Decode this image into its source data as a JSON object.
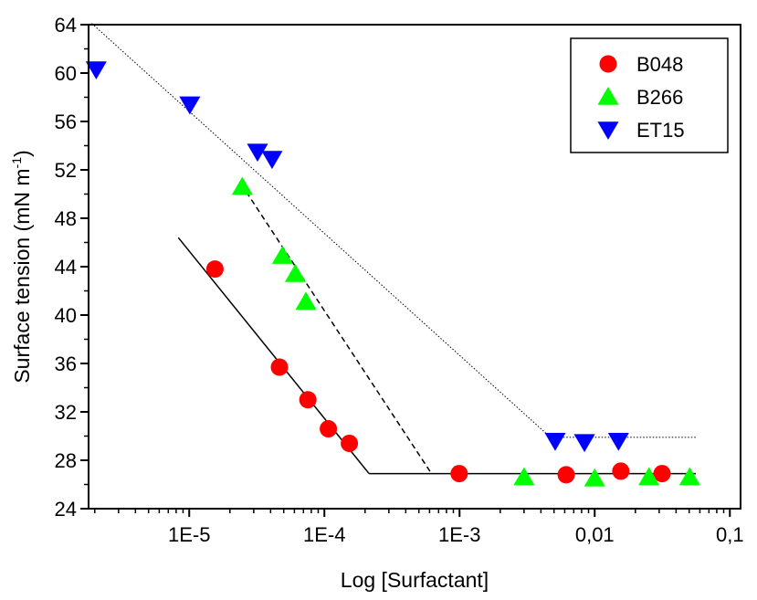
{
  "chart_data": {
    "type": "scatter",
    "title": "",
    "xlabel": "Log [Surfactant]",
    "ylabel_main": "Surface tension (mN m",
    "ylabel_sup": "-1",
    "ylabel_close": ")",
    "xscale": "log",
    "xlim": [
      1.8e-06,
      0.12
    ],
    "ylim": [
      24,
      64
    ],
    "xticks": [
      {
        "value": 1e-05,
        "label": "1E-5"
      },
      {
        "value": 0.0001,
        "label": "1E-4"
      },
      {
        "value": 0.001,
        "label": "1E-3"
      },
      {
        "value": 0.01,
        "label": "0,01"
      },
      {
        "value": 0.1,
        "label": "0,1"
      }
    ],
    "yticks": [
      24,
      28,
      32,
      36,
      40,
      44,
      48,
      52,
      56,
      60,
      64
    ],
    "legend_position": "top-right",
    "series": [
      {
        "name": "B048",
        "marker": "circle",
        "color": "#ff0000",
        "points": [
          [
            1.55e-05,
            43.8
          ],
          [
            4.65e-05,
            35.7
          ],
          [
            7.55e-05,
            33.0
          ],
          [
            0.000107,
            30.6
          ],
          [
            0.000153,
            29.4
          ],
          [
            0.000994,
            26.9
          ],
          [
            0.00615,
            26.8
          ],
          [
            0.0156,
            27.1
          ],
          [
            0.0315,
            26.9
          ]
        ],
        "fit_style": "solid",
        "fit_lines": [
          [
            [
              8.3e-06,
              46.4
            ],
            [
              0.000214,
              26.9
            ]
          ],
          [
            [
              0.000214,
              26.9
            ],
            [
              0.056,
              26.9
            ]
          ]
        ]
      },
      {
        "name": "B266",
        "marker": "triangle-up",
        "color": "#00ff00",
        "points": [
          [
            2.47e-05,
            50.6
          ],
          [
            4.9e-05,
            44.9
          ],
          [
            6.1e-05,
            43.4
          ],
          [
            7.3e-05,
            41.1
          ],
          [
            0.003,
            26.6
          ],
          [
            0.01,
            26.5
          ],
          [
            0.0252,
            26.6
          ],
          [
            0.0505,
            26.6
          ]
        ],
        "fit_style": "dashed",
        "fit_lines": [
          [
            [
              2.43e-05,
              50.8
            ],
            [
              0.00062,
              26.9
            ]
          ]
        ]
      },
      {
        "name": "ET15",
        "marker": "triangle-down",
        "color": "#0000ff",
        "points": [
          [
            2.05e-06,
            60.3
          ],
          [
            1.01e-05,
            57.4
          ],
          [
            3.2e-05,
            53.5
          ],
          [
            4.1e-05,
            52.9
          ],
          [
            0.0051,
            29.6
          ],
          [
            0.0084,
            29.5
          ],
          [
            0.015,
            29.6
          ]
        ],
        "fit_style": "dotted",
        "fit_lines": [
          [
            [
              1.9e-06,
              64.1
            ],
            [
              0.0047,
              29.9
            ]
          ],
          [
            [
              0.0047,
              29.9
            ],
            [
              0.056,
              29.9
            ]
          ]
        ]
      }
    ]
  }
}
